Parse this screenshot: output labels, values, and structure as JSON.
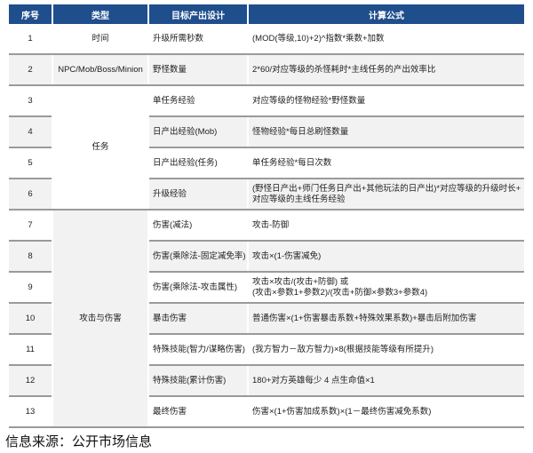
{
  "header": {
    "seq": "序号",
    "type": "类型",
    "target": "目标产出设计",
    "formula": "计算公式"
  },
  "groups": [
    {
      "label": "时间",
      "rows": [
        1
      ]
    },
    {
      "label": "NPC/Mob/Boss/Minion",
      "rows": [
        2
      ]
    },
    {
      "label": "任务",
      "rows": [
        3,
        4,
        5,
        6
      ]
    },
    {
      "label": "攻击与伤害",
      "rows": [
        7,
        8,
        9,
        10,
        11,
        12,
        13
      ]
    }
  ],
  "rows": [
    {
      "seq": "1",
      "target": "升级所需秒数",
      "formula": "(MOD(等级,10)+2)^指数*乘数+加数"
    },
    {
      "seq": "2",
      "target": "野怪数量",
      "formula": "2*60/对应等级的杀怪耗时*主线任务的产出效率比"
    },
    {
      "seq": "3",
      "target": "单任务经验",
      "formula": "对应等级的怪物经验*野怪数量"
    },
    {
      "seq": "4",
      "target": "日产出经验(Mob)",
      "formula": "怪物经验*每日总刷怪数量"
    },
    {
      "seq": "5",
      "target": "日产出经验(任务)",
      "formula": "单任务经验*每日次数"
    },
    {
      "seq": "6",
      "target": "升级经验",
      "formula": "(野怪日产出+师门任务日产出+其他玩法的日产出)*对应等级的升级时长+\n对应等级的主线任务经验"
    },
    {
      "seq": "7",
      "target": "伤害(减法)",
      "formula": "攻击-防御"
    },
    {
      "seq": "8",
      "target": "伤害(乘除法-固定减免率)",
      "formula": "攻击×(1-伤害减免)"
    },
    {
      "seq": "9",
      "target": "伤害(乘除法-攻击属性)",
      "formula": "攻击×攻击/(攻击+防御) 或\n(攻击×参数1+参数2)/(攻击+防御×参数3+参数4)"
    },
    {
      "seq": "10",
      "target": "暴击伤害",
      "formula": "普通伤害×(1+伤害暴击系数+特殊效果系数)+暴击后附加伤害"
    },
    {
      "seq": "11",
      "target": "特殊技能(智力/谋略伤害)",
      "formula": "(我方智力－敌方智力)×8(根据技能等级有所提升)"
    },
    {
      "seq": "12",
      "target": "特殊技能(累计伤害)",
      "formula": "180+对方英雄每少 4 点生命值×1"
    },
    {
      "seq": "13",
      "target": "最终伤害",
      "formula": "伤害×(1+伤害加成系数)×(1－最终伤害减免系数)"
    }
  ],
  "footer": "信息来源：公开市场信息",
  "colors": {
    "header_bg": "#1f4e8c",
    "alt_row": "#f2f2f2",
    "divider": "#9a9a9a"
  }
}
